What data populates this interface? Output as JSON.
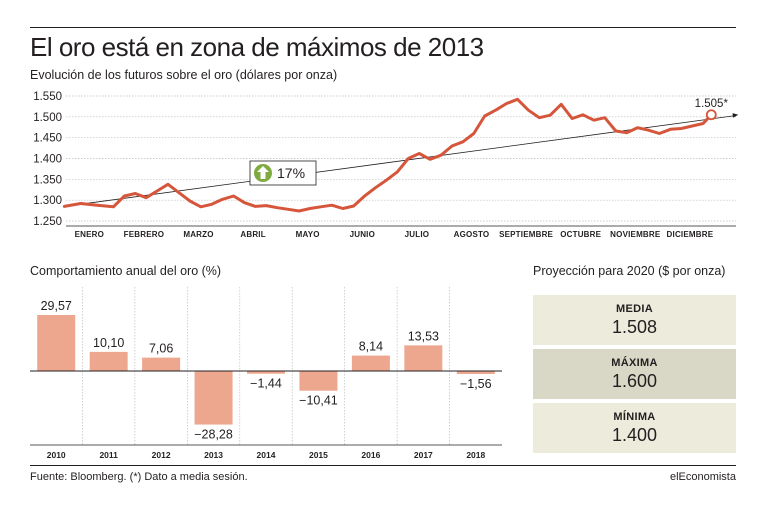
{
  "header": {
    "title": "El oro está en zona de máximos de 2013",
    "subtitle": "Evolución de los futuros sobre el oro (dólares por onza)"
  },
  "colors": {
    "line": "#d5563b",
    "bar": "#eda78f",
    "arrow_badge": "#7eab3f",
    "proj_light": "#ecebdc",
    "proj_dark": "#d9d7c6"
  },
  "chart_data": [
    {
      "type": "line",
      "title": "",
      "yticks": [
        "1.550",
        "1.500",
        "1.450",
        "1.400",
        "1.350",
        "1.300",
        "1.250"
      ],
      "ylim": [
        1250,
        1560
      ],
      "months": [
        "ENERO",
        "FEBRERO",
        "MARZO",
        "ABRIL",
        "MAYO",
        "JUNIO",
        "JULIO",
        "AGOSTO",
        "SEPTIEMBRE",
        "OCTUBRE",
        "NOVIEMBRE",
        "DICIEMBRE"
      ],
      "x": [
        0,
        0.3,
        0.6,
        0.9,
        1.1,
        1.3,
        1.5,
        1.7,
        1.9,
        2.1,
        2.3,
        2.5,
        2.7,
        2.9,
        3.1,
        3.3,
        3.5,
        3.7,
        3.9,
        4.1,
        4.3,
        4.5,
        4.7,
        4.9,
        5.1,
        5.3,
        5.5,
        5.7,
        5.9,
        6.1,
        6.3,
        6.5,
        6.7,
        6.9,
        7.1,
        7.3,
        7.5,
        7.7,
        7.9,
        8.1,
        8.3,
        8.5,
        8.7,
        8.9,
        9.1,
        9.3,
        9.5,
        9.7,
        9.9,
        10.1,
        10.3,
        10.5,
        10.7,
        10.9,
        11.1,
        11.3,
        11.5,
        11.7,
        11.85
      ],
      "values": [
        1285,
        1292,
        1288,
        1284,
        1310,
        1316,
        1306,
        1322,
        1338,
        1318,
        1298,
        1284,
        1290,
        1302,
        1310,
        1294,
        1285,
        1287,
        1282,
        1278,
        1274,
        1280,
        1284,
        1288,
        1280,
        1286,
        1310,
        1330,
        1348,
        1368,
        1400,
        1412,
        1398,
        1408,
        1430,
        1440,
        1460,
        1502,
        1516,
        1532,
        1542,
        1516,
        1498,
        1504,
        1530,
        1496,
        1505,
        1492,
        1498,
        1466,
        1462,
        1474,
        1468,
        1460,
        1470,
        1472,
        1478,
        1484,
        1505
      ],
      "annotation_last": "1.505*",
      "trend": {
        "from_x": 0,
        "from_y": 1285,
        "to_x": 11.85,
        "to_y": 1505
      },
      "trend_label": "17%"
    },
    {
      "type": "bar",
      "title": "Comportamiento anual del oro (%)",
      "categories": [
        "2010",
        "2011",
        "2012",
        "2013",
        "2014",
        "2015",
        "2016",
        "2017",
        "2018"
      ],
      "values": [
        29.57,
        10.1,
        7.06,
        -28.28,
        -1.44,
        -10.41,
        8.14,
        13.53,
        -1.56
      ],
      "labels": [
        "29,57",
        "10,10",
        "7,06",
        "−28,28",
        "−1,44",
        "−10,41",
        "8,14",
        "13,53",
        "−1,56"
      ],
      "ylim": [
        -30,
        30
      ]
    }
  ],
  "projection": {
    "title": "Proyección para 2020 ($ por onza)",
    "items": [
      {
        "label": "MEDIA",
        "value": "1.508"
      },
      {
        "label": "MÁXIMA",
        "value": "1.600"
      },
      {
        "label": "MÍNIMA",
        "value": "1.400"
      }
    ]
  },
  "footer": {
    "source": "Fuente: Bloomberg. (*) Dato a media sesión.",
    "brand": "elEconomista"
  }
}
